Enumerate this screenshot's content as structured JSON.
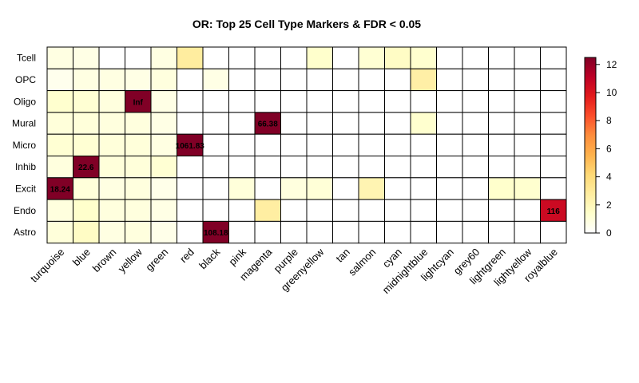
{
  "chart_data": {
    "type": "heatmap",
    "title": "OR: Top 25 Cell Type Markers & FDR < 0.05",
    "rows": [
      "Tcell",
      "OPC",
      "Oligo",
      "Mural",
      "Micro",
      "Inhib",
      "Excit",
      "Endo",
      "Astro"
    ],
    "columns": [
      "turquoise",
      "blue",
      "brown",
      "yellow",
      "green",
      "red",
      "black",
      "pink",
      "magenta",
      "purple",
      "greenyellow",
      "tan",
      "salmon",
      "cyan",
      "midnightblue",
      "lightcyan",
      "grey60",
      "lightgreen",
      "lightyellow",
      "royalblue"
    ],
    "values": [
      [
        0.8,
        0.7,
        0,
        0,
        0.8,
        2.8,
        0,
        0,
        0,
        0,
        1.4,
        0,
        1.2,
        1.6,
        1.3,
        0,
        0,
        0,
        0,
        0
      ],
      [
        0.5,
        0.8,
        0.8,
        0.7,
        0.9,
        0,
        0.7,
        0,
        0,
        0,
        0,
        0,
        0,
        0,
        2.6,
        0,
        0,
        0,
        0,
        0
      ],
      [
        1.3,
        1.2,
        0.9,
        12.5,
        0.7,
        0,
        0,
        0,
        0,
        0,
        0,
        0,
        0,
        0,
        0,
        0,
        0,
        0,
        0,
        0
      ],
      [
        1.0,
        1.0,
        0.9,
        0.9,
        0.7,
        0,
        0,
        0,
        12.5,
        0,
        0,
        0,
        0,
        0,
        1.3,
        0,
        0,
        0,
        0,
        0
      ],
      [
        1.2,
        1.2,
        1.0,
        1.0,
        0.8,
        12.5,
        0,
        0,
        0,
        0,
        0,
        0,
        0,
        0,
        0,
        0,
        0,
        0,
        0,
        0
      ],
      [
        0.9,
        12.5,
        1.0,
        1.0,
        1.2,
        0,
        0,
        0,
        0,
        0,
        0,
        0,
        0,
        0,
        0,
        0,
        0,
        0,
        0,
        0
      ],
      [
        12.5,
        1.0,
        0.8,
        0.9,
        0.6,
        0,
        0,
        1.0,
        0,
        0.9,
        1.1,
        0,
        2.2,
        0,
        0,
        0,
        0,
        1.4,
        1.3,
        0
      ],
      [
        0.9,
        1.4,
        0.9,
        0.9,
        0.7,
        0,
        0,
        0,
        2.7,
        0,
        0,
        0,
        0,
        0,
        0,
        0,
        0,
        0,
        0,
        10.6
      ],
      [
        1.0,
        1.6,
        0.8,
        0.9,
        0.6,
        0,
        12.5,
        0,
        0,
        0,
        0,
        0,
        0,
        0,
        0,
        0,
        0,
        0,
        0,
        0
      ]
    ],
    "cell_labels": [
      {
        "row": "Oligo",
        "column": "yellow",
        "text": "Inf"
      },
      {
        "row": "Mural",
        "column": "magenta",
        "text": "66.38"
      },
      {
        "row": "Micro",
        "column": "red",
        "text": "1061.83"
      },
      {
        "row": "Inhib",
        "column": "blue",
        "text": "22.6"
      },
      {
        "row": "Excit",
        "column": "turquoise",
        "text": "18.24"
      },
      {
        "row": "Endo",
        "column": "royalblue",
        "text": "116"
      },
      {
        "row": "Astro",
        "column": "black",
        "text": "108.18"
      }
    ],
    "color_scale": {
      "min": 0,
      "max": 12.5,
      "ticks": [
        0,
        2,
        4,
        6,
        8,
        10,
        12
      ],
      "colors": [
        "#FFFFFF",
        "#FFFFCC",
        "#FFEDA0",
        "#FED976",
        "#FEB24C",
        "#FD8D3C",
        "#FC4E2A",
        "#E31A1C",
        "#BD0026",
        "#800026"
      ]
    },
    "legend_position": "right"
  }
}
